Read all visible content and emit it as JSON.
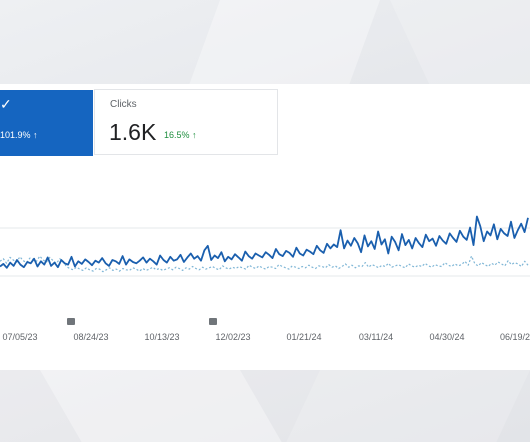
{
  "impressions_card": {
    "change_text": "101.9% ↑",
    "accent_color": "#1565c0"
  },
  "clicks_card": {
    "label": "Clicks",
    "value": "1.6K",
    "change_text": "16.5% ↑",
    "change_color": "#1e8e3e"
  },
  "chart_data": {
    "type": "line",
    "x_ticks": [
      "07/05/23",
      "08/24/23",
      "10/13/23",
      "12/02/23",
      "01/21/24",
      "03/11/24",
      "04/30/24",
      "06/19/2"
    ],
    "annotation_markers": [
      "08/24/23",
      "12/02/23"
    ],
    "series": [
      {
        "color": "#1a5fae",
        "style": "solid",
        "values": [
          30,
          34,
          28,
          36,
          31,
          40,
          33,
          29,
          37,
          35,
          42,
          30,
          38,
          33,
          44,
          31,
          36,
          29,
          40,
          35,
          33,
          45,
          30,
          38,
          34,
          41,
          37,
          32,
          39,
          36,
          43,
          35,
          31,
          40,
          38,
          34,
          46,
          33,
          41,
          37,
          35,
          39,
          44,
          36,
          42,
          38,
          33,
          47,
          40,
          36,
          45,
          39,
          41,
          48,
          37,
          44,
          50,
          42,
          46,
          39,
          55,
          62,
          40,
          47,
          43,
          52,
          38,
          45,
          41,
          49,
          44,
          39,
          53,
          46,
          42,
          50,
          47,
          44,
          52,
          48,
          43,
          57,
          49,
          46,
          54,
          51,
          45,
          59,
          50,
          47,
          56,
          53,
          49,
          62,
          55,
          51,
          65,
          58,
          64,
          60,
          86,
          58,
          70,
          62,
          74,
          66,
          52,
          78,
          61,
          69,
          57,
          84,
          64,
          72,
          50,
          76,
          68,
          55,
          80,
          63,
          71,
          58,
          74,
          66,
          60,
          79,
          69,
          73,
          62,
          77,
          70,
          65,
          81,
          74,
          68,
          85,
          76,
          71,
          90,
          63,
          107,
          92,
          69,
          84,
          78,
          95,
          72,
          88,
          81,
          77,
          99,
          74,
          86,
          96,
          83,
          105
        ]
      },
      {
        "color": "#7fb6d6",
        "style": "dashed",
        "values": [
          38,
          42,
          35,
          44,
          40,
          37,
          45,
          39,
          36,
          43,
          41,
          38,
          46,
          40,
          37,
          44,
          39,
          35,
          42,
          38,
          30,
          27,
          25,
          29,
          26,
          24,
          28,
          25,
          23,
          27,
          26,
          22,
          25,
          28,
          24,
          26,
          23,
          27,
          25,
          24,
          28,
          26,
          23,
          27,
          24,
          26,
          29,
          25,
          27,
          24,
          26,
          28,
          25,
          29,
          27,
          24,
          28,
          26,
          30,
          27,
          25,
          29,
          26,
          28,
          30,
          27,
          25,
          31,
          28,
          26,
          29,
          27,
          30,
          28,
          26,
          32,
          29,
          27,
          31,
          28,
          26,
          30,
          29,
          27,
          33,
          30,
          28,
          26,
          31,
          29,
          27,
          30,
          28,
          32,
          29,
          27,
          31,
          30,
          28,
          33,
          29,
          31,
          27,
          30,
          34,
          29,
          32,
          28,
          31,
          30,
          36,
          29,
          33,
          31,
          28,
          32,
          30,
          35,
          29,
          31,
          33,
          30,
          28,
          34,
          31,
          29,
          32,
          30,
          35,
          31,
          29,
          33,
          31,
          30,
          36,
          32,
          30,
          34,
          31,
          33,
          38,
          32,
          46,
          34,
          31,
          36,
          33,
          30,
          35,
          32,
          37,
          34,
          31,
          39,
          33,
          36,
          34,
          30,
          38,
          32
        ]
      }
    ]
  }
}
